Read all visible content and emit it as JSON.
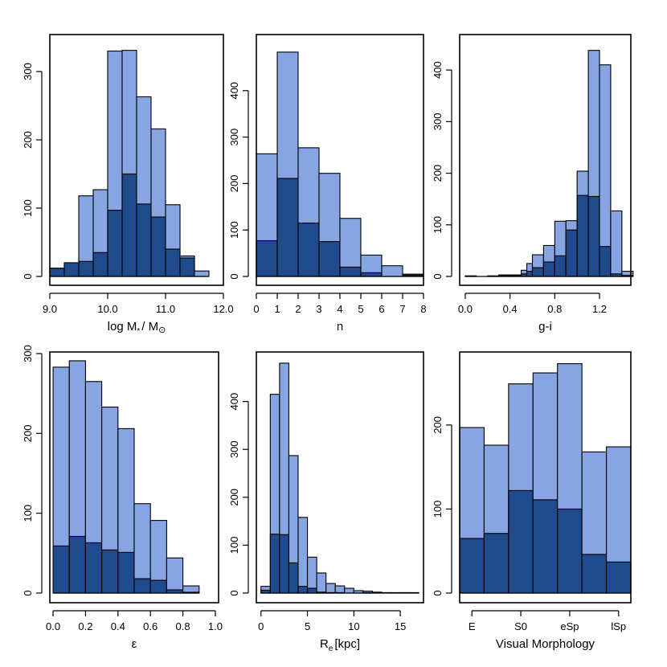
{
  "colors": {
    "all": "#87a5e2",
    "subset": "#1f4a8c",
    "outline": "#000000"
  },
  "chart_data": [
    {
      "type": "bar",
      "xlabel_main": "log M",
      "xlabel_sub": "*",
      "xlabel_rest": "/ M",
      "xlabel_sub2": "⊙",
      "xlim": [
        9.0,
        12.0
      ],
      "ylim": [
        0,
        340
      ],
      "xticks": [
        9.0,
        10.0,
        11.0,
        12.0
      ],
      "xtick_labels": [
        "9.0",
        "10.0",
        "11.0",
        "12.0"
      ],
      "yticks": [
        0,
        100,
        200,
        300
      ],
      "ytick_labels": [
        "0",
        "100",
        "200",
        "300"
      ],
      "bins": [
        9.0,
        9.25,
        9.5,
        9.75,
        10.0,
        10.25,
        10.5,
        10.75,
        11.0,
        11.25,
        11.5,
        11.75
      ],
      "all": [
        12,
        20,
        118,
        127,
        330,
        331,
        263,
        216,
        105,
        30,
        8
      ],
      "subset": [
        12,
        20,
        22,
        35,
        97,
        150,
        106,
        87,
        40,
        27,
        0
      ]
    },
    {
      "type": "bar",
      "xlabel": "n",
      "xlim": [
        0,
        8
      ],
      "ylim": [
        0,
        500
      ],
      "xticks": [
        0,
        1,
        2,
        3,
        4,
        5,
        6,
        7,
        8
      ],
      "xtick_labels": [
        "0",
        "1",
        "2",
        "3",
        "4",
        "5",
        "6",
        "7",
        "8"
      ],
      "yticks": [
        0,
        100,
        200,
        300,
        400
      ],
      "ytick_labels": [
        "0",
        "100",
        "200",
        "300",
        "400"
      ],
      "bins": [
        0,
        1,
        2,
        3,
        4,
        5,
        6,
        7,
        8
      ],
      "all": [
        264,
        483,
        277,
        222,
        125,
        46,
        23,
        5
      ],
      "subset": [
        77,
        211,
        115,
        75,
        20,
        8,
        0,
        3
      ]
    },
    {
      "type": "bar",
      "xlabel": "g-i",
      "xlim": [
        -0.05,
        1.48
      ],
      "ylim": [
        0,
        450
      ],
      "xticks": [
        0.0,
        0.4,
        0.8,
        1.2
      ],
      "xtick_labels": [
        "0.0",
        "0.4",
        "0.8",
        "1.2"
      ],
      "yticks": [
        0,
        100,
        200,
        300,
        400
      ],
      "ytick_labels": [
        "0",
        "100",
        "200",
        "300",
        "400"
      ],
      "bins": [
        0.0,
        0.1,
        0.2,
        0.3,
        0.4,
        0.5,
        0.55,
        0.6,
        0.7,
        0.8,
        0.9,
        1.0,
        1.1,
        1.2,
        1.3,
        1.4,
        1.5
      ],
      "all": [
        1,
        0,
        1,
        3,
        3,
        12,
        25,
        42,
        60,
        107,
        108,
        204,
        438,
        410,
        127,
        10
      ],
      "subset": [
        1,
        0,
        1,
        2,
        2,
        5,
        10,
        17,
        28,
        40,
        90,
        157,
        155,
        58,
        5,
        2
      ]
    },
    {
      "type": "bar",
      "xlabel": "ε",
      "xlim": [
        -0.02,
        1.02
      ],
      "ylim": [
        0,
        300
      ],
      "xticks": [
        0.0,
        0.2,
        0.4,
        0.6,
        0.8,
        1.0
      ],
      "xtick_labels": [
        "0.0",
        "0.2",
        "0.4",
        "0.6",
        "0.8",
        "1.0"
      ],
      "yticks": [
        0,
        100,
        200,
        300
      ],
      "ytick_labels": [
        "0",
        "100",
        "200",
        "300"
      ],
      "bins": [
        0.0,
        0.1,
        0.2,
        0.3,
        0.4,
        0.5,
        0.6,
        0.7,
        0.8,
        0.9
      ],
      "all": [
        283,
        291,
        265,
        233,
        206,
        112,
        91,
        44,
        9
      ],
      "subset": [
        59,
        71,
        63,
        54,
        51,
        18,
        16,
        4,
        1
      ]
    },
    {
      "type": "bar",
      "xlabel_main": "R",
      "xlabel_sub": "e",
      "xlabel_rest": "[kpc]",
      "xlim": [
        -0.5,
        17.5
      ],
      "ylim": [
        0,
        500
      ],
      "xticks": [
        0,
        5,
        10,
        15
      ],
      "xtick_labels": [
        "0",
        "5",
        "10",
        "15"
      ],
      "yticks": [
        0,
        100,
        200,
        300,
        400
      ],
      "ytick_labels": [
        "0",
        "100",
        "200",
        "300",
        "400"
      ],
      "bins": [
        0,
        1,
        2,
        3,
        4,
        5,
        6,
        7,
        8,
        9,
        10,
        11,
        12,
        13,
        14,
        15,
        16,
        17
      ],
      "all": [
        14,
        415,
        480,
        287,
        158,
        75,
        42,
        20,
        15,
        10,
        5,
        4,
        2,
        1,
        1,
        1,
        1
      ],
      "subset": [
        6,
        123,
        122,
        63,
        14,
        10,
        2,
        1,
        1,
        0,
        0,
        1,
        0,
        0,
        0,
        0,
        0
      ]
    },
    {
      "type": "bar",
      "xlabel": "Visual Morphology",
      "xlim": [
        0,
        7
      ],
      "ylim": [
        0,
        285
      ],
      "xticks": [
        0.5,
        2.5,
        4.5,
        6.5
      ],
      "xtick_labels": [
        "E",
        "S0",
        "eSp",
        "lSp"
      ],
      "yticks": [
        0,
        100,
        200
      ],
      "ytick_labels": [
        "0",
        "100",
        "200"
      ],
      "bins": [
        0,
        1,
        2,
        3,
        4,
        5,
        6,
        7
      ],
      "all": [
        197,
        176,
        249,
        262,
        273,
        168,
        174
      ],
      "subset": [
        65,
        71,
        122,
        111,
        100,
        46,
        37
      ]
    }
  ]
}
